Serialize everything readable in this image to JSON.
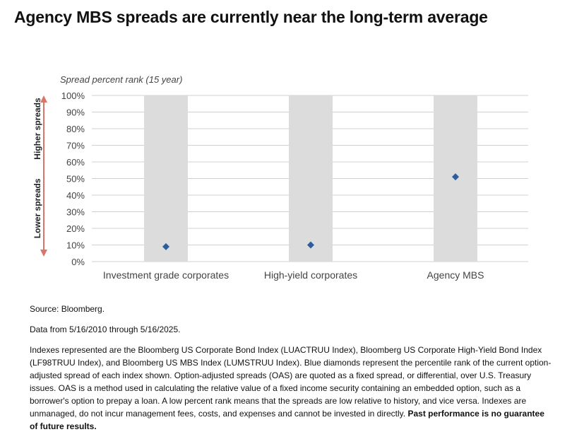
{
  "title": "Agency MBS spreads are currently near the long-term average",
  "chart_data": {
    "type": "scatter",
    "subtitle": "Spread percent rank (15 year)",
    "categories": [
      "Investment grade corporates",
      "High-yield corporates",
      "Agency MBS"
    ],
    "values": [
      9,
      10,
      51
    ],
    "range": [
      0,
      100
    ],
    "ylim": [
      0,
      100
    ],
    "yticks": [
      "0%",
      "10%",
      "20%",
      "30%",
      "40%",
      "50%",
      "60%",
      "70%",
      "80%",
      "90%",
      "100%"
    ],
    "arrow_labels": {
      "higher": "Higher spreads",
      "lower": "Lower spreads"
    },
    "grid": true,
    "colors": {
      "marker": "#2e5d9f",
      "range_bar": "#dcdcdc",
      "arrow": "#d9766a",
      "gridline": "#d0d0d0"
    }
  },
  "notes": {
    "source": "Source: Bloomberg.",
    "data_range": "Data from 5/16/2010 through 5/16/2025.",
    "description": "Indexes represented are the Bloomberg US Corporate Bond Index (LUACTRUU Index), Bloomberg US Corporate High-Yield Bond Index (LF98TRUU Index), and Bloomberg US MBS Index (LUMSTRUU Index). Blue diamonds represent the percentile rank of the current option-adjusted spread of each index shown. Option-adjusted spreads (OAS) are quoted as a fixed spread, or differential, over U.S. Treasury issues. OAS is a method used in calculating the relative value of a fixed income security containing an embedded option, such as a borrower's option to prepay a loan. A low percent rank means that the spreads are low relative to history, and vice versa. Indexes are unmanaged, do not incur management fees, costs, and expenses and cannot be invested in directly.",
    "disclaimer": "Past performance is no guarantee of future results."
  }
}
